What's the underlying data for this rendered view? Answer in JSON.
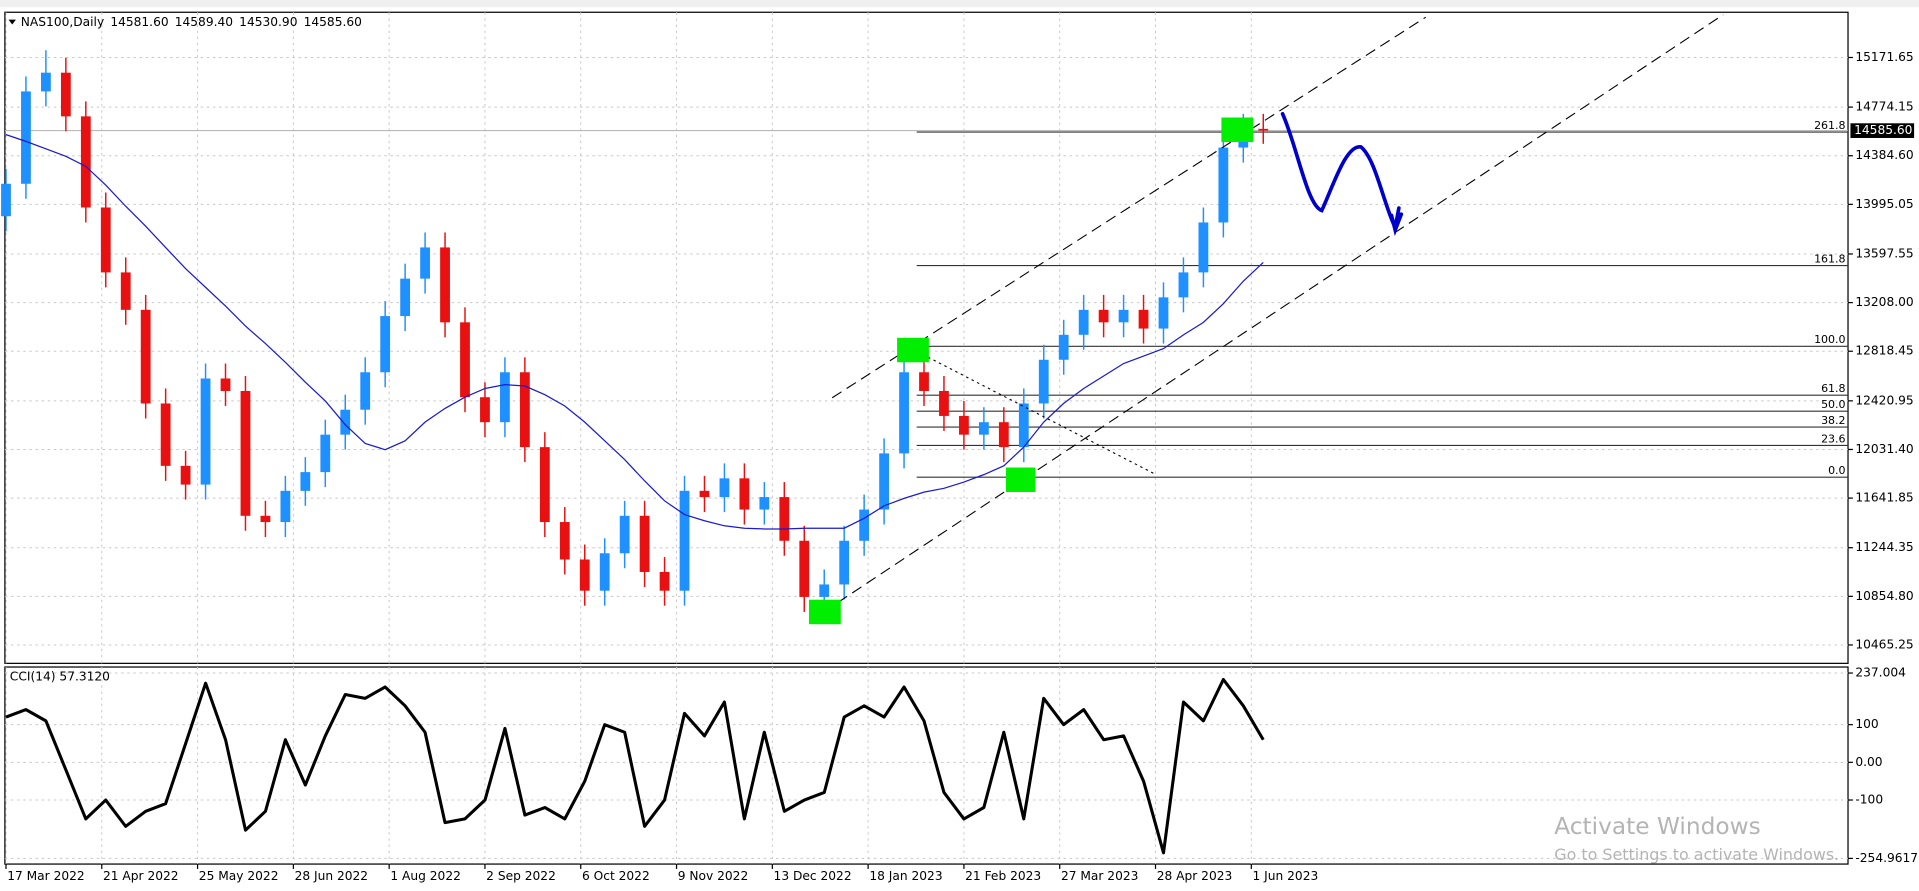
{
  "chart_data": [
    {
      "type": "candlestick",
      "title": "NAS100,Daily",
      "header_prices": [
        {
          "value": 14581.6,
          "label": "14581.60"
        },
        {
          "value": 14589.4,
          "label": "14589.40"
        },
        {
          "value": 14530.9,
          "label": "14530.90"
        },
        {
          "value": 14585.6,
          "label": "14585.60"
        }
      ],
      "x": [
        0,
        1,
        2,
        3,
        4,
        5,
        6,
        7,
        8,
        9,
        10,
        11,
        12,
        13,
        14,
        15,
        16,
        17,
        18,
        19,
        20,
        21,
        22,
        23,
        24,
        25,
        26,
        27,
        28,
        29,
        30,
        31,
        32,
        33,
        34,
        35,
        36,
        37,
        38,
        39,
        40,
        41,
        42,
        43,
        44,
        45,
        46,
        47,
        48,
        49,
        50,
        51,
        52,
        53,
        54,
        55,
        56,
        57,
        58,
        59,
        60,
        61,
        62,
        63
      ],
      "open": [
        13900,
        14160,
        14900,
        15050,
        14700,
        13970,
        13450,
        13150,
        12400,
        11900,
        11750,
        12600,
        12500,
        11500,
        11450,
        11700,
        11850,
        12150,
        12350,
        12650,
        13100,
        13400,
        13650,
        13050,
        12450,
        12250,
        12650,
        12050,
        11450,
        11150,
        10900,
        11200,
        11500,
        11050,
        10900,
        11700,
        11650,
        11800,
        11550,
        11650,
        11300,
        10850,
        10950,
        11300,
        11550,
        12000,
        12650,
        12500,
        12300,
        12150,
        12250,
        12050,
        12400,
        12750,
        12950,
        13150,
        13050,
        13150,
        13000,
        13250,
        13450,
        13850,
        14450,
        14600
      ],
      "high": [
        14280,
        15020,
        15230,
        15170,
        14820,
        14090,
        13570,
        13270,
        12520,
        12020,
        12720,
        12720,
        12620,
        11620,
        11820,
        11970,
        12270,
        12470,
        12770,
        13220,
        13520,
        13770,
        13770,
        13170,
        12570,
        12770,
        12770,
        12170,
        11570,
        11270,
        11320,
        11620,
        11620,
        11170,
        11820,
        11820,
        11920,
        11920,
        11770,
        11770,
        11420,
        11070,
        11420,
        11670,
        12120,
        12770,
        12770,
        12620,
        12420,
        12370,
        12370,
        12520,
        12870,
        13070,
        13270,
        13270,
        13270,
        13270,
        13370,
        13570,
        13970,
        14570,
        14720,
        14720
      ],
      "low": [
        13780,
        14040,
        14780,
        14580,
        13850,
        13330,
        13030,
        12280,
        11780,
        11630,
        11630,
        12380,
        11380,
        11330,
        11330,
        11580,
        11730,
        12030,
        12230,
        12530,
        12980,
        13280,
        12930,
        12330,
        12130,
        12130,
        11930,
        11330,
        11030,
        10780,
        10780,
        11080,
        10930,
        10780,
        10780,
        11530,
        11530,
        11430,
        11430,
        11180,
        10730,
        10730,
        10830,
        11180,
        11430,
        11880,
        12380,
        12180,
        12030,
        12030,
        11930,
        11930,
        12280,
        12630,
        12830,
        12930,
        12930,
        12880,
        12880,
        13130,
        13330,
        13730,
        14330,
        14480
      ],
      "close": [
        14160,
        14900,
        15050,
        14700,
        13970,
        13450,
        13150,
        12400,
        11900,
        11750,
        12600,
        12500,
        11500,
        11450,
        11700,
        11850,
        12150,
        12350,
        12650,
        13100,
        13400,
        13650,
        13050,
        12450,
        12250,
        12650,
        12050,
        11450,
        11150,
        10900,
        11200,
        11500,
        11050,
        10900,
        11700,
        11650,
        11800,
        11550,
        11650,
        11300,
        10850,
        10950,
        11300,
        11550,
        12000,
        12650,
        12500,
        12300,
        12150,
        12250,
        12050,
        12400,
        12750,
        12950,
        13150,
        13050,
        13150,
        13000,
        13250,
        13450,
        13850,
        14450,
        14600,
        14585.6
      ],
      "up_color": "#1e90ff",
      "down_color": "#e81010",
      "ma": {
        "color": "#1a1ad0",
        "values": [
          14554,
          14500,
          14440,
          14380,
          14300,
          14150,
          13980,
          13820,
          13650,
          13480,
          13330,
          13180,
          13020,
          12880,
          12730,
          12570,
          12420,
          12230,
          12080,
          12030,
          12100,
          12250,
          12360,
          12450,
          12520,
          12550,
          12540,
          12470,
          12380,
          12250,
          12100,
          11950,
          11780,
          11620,
          11510,
          11460,
          11420,
          11400,
          11395,
          11395,
          11400,
          11400,
          11400,
          11480,
          11580,
          11640,
          11690,
          11720,
          11770,
          11830,
          11900,
          12050,
          12250,
          12400,
          12520,
          12620,
          12720,
          12780,
          12840,
          12950,
          13050,
          13200,
          13380,
          13530
        ]
      },
      "xlim": [
        -0.3,
        92.3
      ],
      "ylim": [
        10318,
        15534
      ],
      "yticks": [
        15171.65,
        14774.15,
        {
          "value": 14384.6,
          "label": "14384.60"
        },
        13995.05,
        13597.55,
        {
          "value": 13208,
          "label": "13208.00"
        },
        12818.45,
        12420.95,
        {
          "value": 12031.4,
          "label": "12031.40"
        },
        11641.85,
        11244.35,
        {
          "value": 10854.8,
          "label": "10854.80"
        },
        10465.25
      ],
      "last_price": {
        "value": 14585.6,
        "label": "14585.60"
      },
      "fib_levels": [
        {
          "label": "261.8",
          "price": 14574
        },
        {
          "label": "161.8",
          "price": 13505
        },
        {
          "label": "100.0",
          "price": 12858
        },
        {
          "label": "61.8",
          "price": 12466
        },
        {
          "label": "50.0",
          "price": 12338
        },
        {
          "label": "38.2",
          "price": 12211
        },
        {
          "label": "23.6",
          "price": 12064
        },
        {
          "label": "0.0",
          "price": 11809
        }
      ],
      "grid": true
    },
    {
      "type": "line",
      "title": "CCI(14) 57.3120",
      "color": "#000000",
      "x": [
        0,
        1,
        2,
        3,
        4,
        5,
        6,
        7,
        8,
        9,
        10,
        11,
        12,
        13,
        14,
        15,
        16,
        17,
        18,
        19,
        20,
        21,
        22,
        23,
        24,
        25,
        26,
        27,
        28,
        29,
        30,
        31,
        32,
        33,
        34,
        35,
        36,
        37,
        38,
        39,
        40,
        41,
        42,
        43,
        44,
        45,
        46,
        47,
        48,
        49,
        50,
        51,
        52,
        53,
        54,
        55,
        56,
        57,
        58,
        59,
        60,
        61,
        62,
        63
      ],
      "values": [
        120,
        140,
        110,
        -20,
        -150,
        -100,
        -170,
        -130,
        -110,
        50,
        210,
        60,
        -180,
        -130,
        60,
        -60,
        70,
        180,
        170,
        200,
        150,
        80,
        -160,
        -150,
        -100,
        90,
        -140,
        -120,
        -150,
        -50,
        100,
        80,
        -170,
        -100,
        130,
        70,
        160,
        -150,
        80,
        -130,
        -100,
        -80,
        120,
        150,
        120,
        200,
        110,
        -80,
        -150,
        -120,
        80,
        -150,
        170,
        100,
        140,
        60,
        70,
        -50,
        -240,
        160,
        110,
        220,
        150,
        60
      ],
      "xlim": [
        -0.3,
        92.3
      ],
      "ylim": [
        -270,
        253
      ],
      "yticks": [
        237.004,
        100,
        {
          "value": 0,
          "label": "0.00"
        },
        -100,
        -254.9617
      ],
      "xticks": [
        {
          "value": 0,
          "label": "17 Mar 2022"
        },
        {
          "value": 4.8,
          "label": "21 Apr 2022"
        },
        {
          "value": 9.6,
          "label": "25 May 2022"
        },
        {
          "value": 14.4,
          "label": "28 Jun 2022"
        },
        {
          "value": 19.2,
          "label": "1 Aug 2022"
        },
        {
          "value": 24,
          "label": "2 Sep 2022"
        },
        {
          "value": 28.8,
          "label": "6 Oct 2022"
        },
        {
          "value": 33.6,
          "label": "9 Nov 2022"
        },
        {
          "value": 38.4,
          "label": "13 Dec 2022"
        },
        {
          "value": 43.2,
          "label": "18 Jan 2023"
        },
        {
          "value": 48,
          "label": "21 Feb 2023"
        },
        {
          "value": 52.8,
          "label": "27 Mar 2023"
        },
        {
          "value": 57.6,
          "label": "28 Apr 2023"
        },
        {
          "value": 62.4,
          "label": "1 Jun 2023"
        }
      ],
      "grid": true
    }
  ],
  "watermark": [
    "Activate Windows",
    "Go to Settings to activate Windows."
  ]
}
